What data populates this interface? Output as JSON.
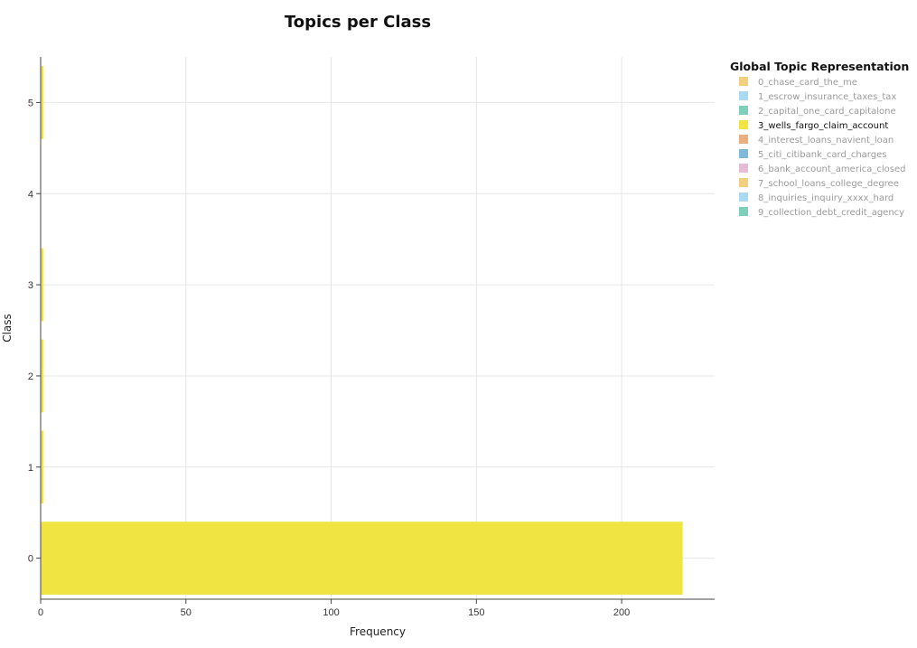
{
  "chart_data": {
    "type": "bar",
    "orientation": "horizontal",
    "title": "Topics per Class",
    "xlabel": "Frequency",
    "ylabel": "Class",
    "xlim": [
      0,
      232
    ],
    "ylim": [
      -0.45,
      5.5
    ],
    "x_ticks": [
      0,
      50,
      100,
      150,
      200
    ],
    "y_ticks": [
      0,
      1,
      2,
      3,
      4,
      5
    ],
    "grid": true,
    "legend_placement": "right",
    "legend_title": "Global Topic Representation",
    "categories": [
      "0",
      "1",
      "2",
      "3",
      "5"
    ],
    "series": [
      {
        "name": "3_wells_fargo_claim_account",
        "color": "#F0E442",
        "values": [
          221,
          1,
          1,
          1,
          1
        ]
      }
    ],
    "legend": [
      {
        "label": "0_chase_card_the_me",
        "color": "#E69F00",
        "active": false
      },
      {
        "label": "1_escrow_insurance_taxes_tax",
        "color": "#56B4E9",
        "active": false
      },
      {
        "label": "2_capital_one_card_capitalone",
        "color": "#009E73",
        "active": false
      },
      {
        "label": "3_wells_fargo_claim_account",
        "color": "#F0E442",
        "active": true
      },
      {
        "label": "4_interest_loans_navient_loan",
        "color": "#D55E00",
        "active": false
      },
      {
        "label": "5_citi_citibank_card_charges",
        "color": "#0072B2",
        "active": false
      },
      {
        "label": "6_bank_account_america_closed",
        "color": "#CC79A7",
        "active": false
      },
      {
        "label": "7_school_loans_college_degree",
        "color": "#E69F00",
        "active": false
      },
      {
        "label": "8_inquiries_inquiry_xxxx_hard",
        "color": "#56B4E9",
        "active": false
      },
      {
        "label": "9_collection_debt_credit_agency",
        "color": "#009E73",
        "active": false
      }
    ]
  }
}
